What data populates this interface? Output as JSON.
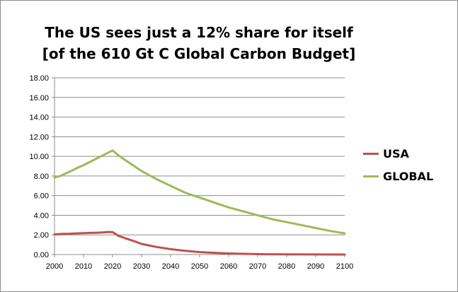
{
  "chart_data": {
    "type": "line",
    "title_lines": [
      "The US sees just a 12% share for itself",
      "[of the 610 Gt C Global Carbon Budget]"
    ],
    "xlabel": "",
    "ylabel": "",
    "x_ticks": [
      2000,
      2010,
      2020,
      2030,
      2040,
      2050,
      2060,
      2070,
      2080,
      2090,
      2100
    ],
    "y_ticks": [
      "0.00",
      "2.00",
      "4.00",
      "6.00",
      "8.00",
      "10.00",
      "12.00",
      "14.00",
      "16.00",
      "18.00"
    ],
    "xlim": [
      2000,
      2100
    ],
    "ylim": [
      0,
      18
    ],
    "grid": "horizontal",
    "legend_position": "right",
    "series": [
      {
        "name": "USA",
        "color": "#c0504d",
        "x": [
          2000,
          2003,
          2005,
          2008,
          2010,
          2012,
          2014,
          2016,
          2018,
          2019,
          2020,
          2021,
          2022,
          2025,
          2028,
          2030,
          2035,
          2040,
          2045,
          2050,
          2055,
          2060,
          2065,
          2070,
          2072,
          2080,
          2090,
          2100
        ],
        "values": [
          2.05,
          2.1,
          2.12,
          2.16,
          2.18,
          2.2,
          2.22,
          2.24,
          2.28,
          2.3,
          2.28,
          2.1,
          1.9,
          1.6,
          1.3,
          1.08,
          0.78,
          0.55,
          0.38,
          0.25,
          0.17,
          0.11,
          0.07,
          0.04,
          0.03,
          0.02,
          0.01,
          0.0
        ]
      },
      {
        "name": "GLOBAL",
        "color": "#9bbb59",
        "x": [
          2000,
          2002,
          2005,
          2008,
          2010,
          2013,
          2015,
          2018,
          2020,
          2022,
          2025,
          2030,
          2035,
          2040,
          2045,
          2050,
          2055,
          2060,
          2065,
          2070,
          2075,
          2080,
          2085,
          2090,
          2095,
          2100
        ],
        "values": [
          7.85,
          8.0,
          8.4,
          8.85,
          9.1,
          9.55,
          9.85,
          10.3,
          10.6,
          10.1,
          9.5,
          8.5,
          7.7,
          7.0,
          6.3,
          5.8,
          5.3,
          4.8,
          4.4,
          4.0,
          3.6,
          3.3,
          3.0,
          2.7,
          2.4,
          2.15
        ]
      }
    ]
  }
}
